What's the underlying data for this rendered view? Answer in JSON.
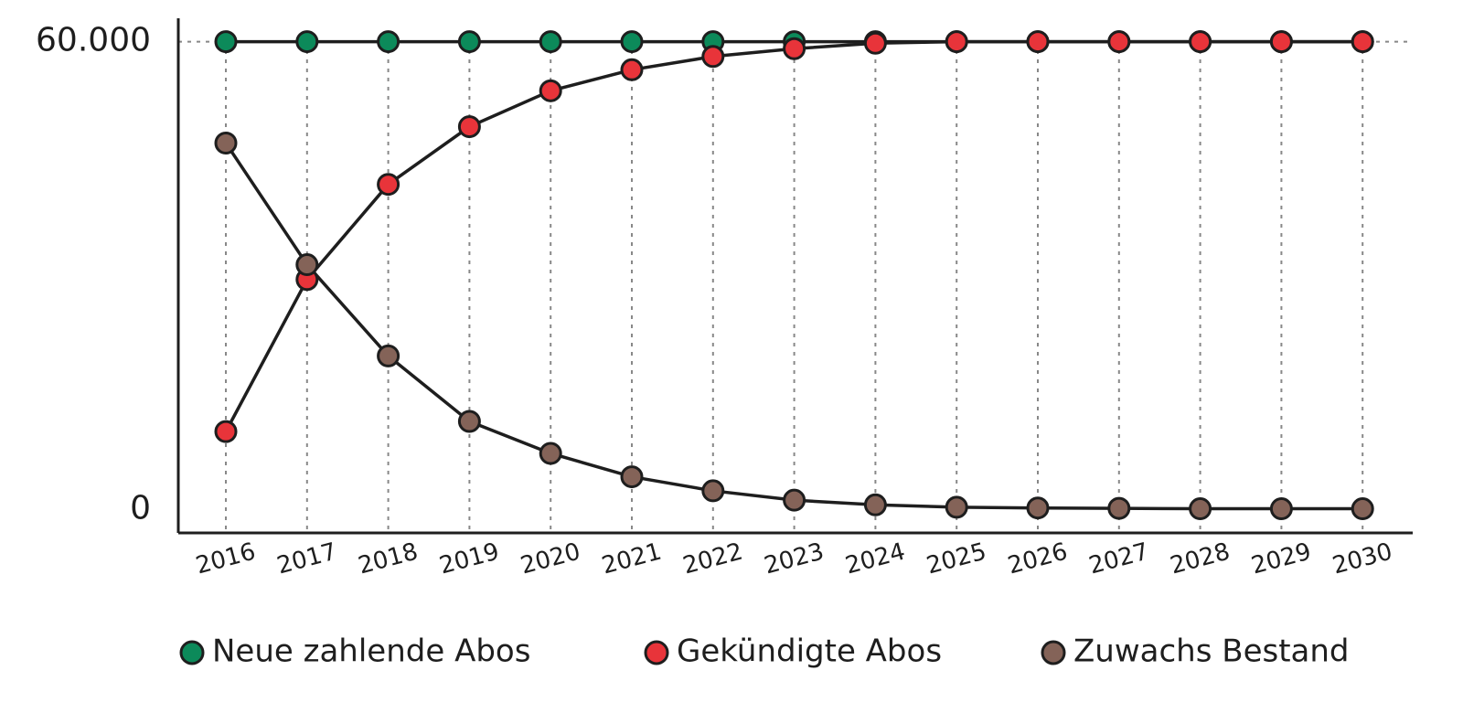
{
  "chart_data": {
    "type": "line",
    "categories": [
      "2016",
      "2017",
      "2018",
      "2019",
      "2020",
      "2021",
      "2022",
      "2023",
      "2024",
      "2025",
      "2026",
      "2027",
      "2028",
      "2029",
      "2030"
    ],
    "series": [
      {
        "name": "Neue zahlende Abos",
        "color": "#0c8a5a",
        "values": [
          60000,
          60000,
          60000,
          60000,
          60000,
          60000,
          60000,
          60000,
          60000,
          60000,
          60000,
          60000,
          60000,
          60000,
          60000
        ]
      },
      {
        "name": "Gekündigte Abos",
        "color": "#e8343a",
        "values": [
          10000,
          29500,
          41700,
          49100,
          53700,
          56400,
          58100,
          59100,
          59800,
          60000,
          60000,
          60000,
          60000,
          60000,
          60000
        ]
      },
      {
        "name": "Zuwachs Bestand",
        "color": "#846358",
        "values": [
          47000,
          31400,
          19700,
          11300,
          7200,
          4200,
          2400,
          1200,
          600,
          300,
          200,
          150,
          100,
          100,
          100
        ]
      }
    ],
    "ylim": [
      -3000,
      63000
    ],
    "yticks": [
      0,
      {
        "value": 60000,
        "label": "60.000"
      }
    ],
    "grid": true,
    "legend": "bottom"
  }
}
